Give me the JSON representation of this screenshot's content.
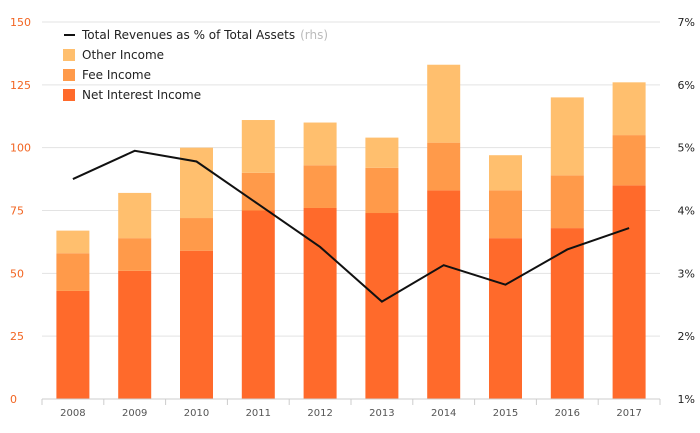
{
  "chart_data": {
    "type": "bar",
    "stacked": true,
    "categories": [
      "2008",
      "2009",
      "2010",
      "2011",
      "2012",
      "2013",
      "2014",
      "2015",
      "2016",
      "2017"
    ],
    "series": [
      {
        "name": "Net Interest Income",
        "color": "#ff6a2b",
        "values": [
          43,
          51,
          59,
          75,
          76,
          74,
          83,
          64,
          68,
          85
        ]
      },
      {
        "name": "Fee Income",
        "color": "#ff9a4a",
        "values": [
          15,
          13,
          13,
          15,
          17,
          18,
          19,
          19,
          21,
          20
        ]
      },
      {
        "name": "Other Income",
        "color": "#ffbf6e",
        "values": [
          9,
          18,
          28,
          21,
          17,
          12,
          31,
          14,
          31,
          21
        ]
      }
    ],
    "line_series": {
      "name": "Total Revenues as % of Total Assets",
      "axis_note": "(rhs)",
      "color": "#111111",
      "values": [
        4.5,
        4.95,
        4.78,
        4.1,
        3.42,
        2.55,
        3.13,
        2.82,
        3.38,
        3.72
      ]
    },
    "y_left": {
      "ticks": [
        "0",
        "25",
        "50",
        "75",
        "100",
        "125",
        "150"
      ],
      "lim": [
        0,
        150
      ]
    },
    "y_right": {
      "ticks": [
        "1%",
        "2%",
        "3%",
        "4%",
        "5%",
        "6%",
        "7%"
      ],
      "lim": [
        1,
        7
      ]
    },
    "grid": true,
    "legend": "top-left"
  }
}
